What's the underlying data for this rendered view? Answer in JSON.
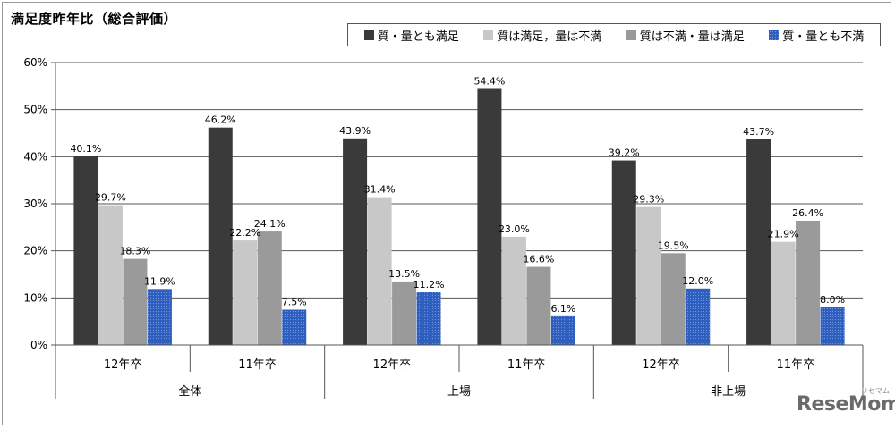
{
  "chart_data": {
    "type": "bar",
    "title": "満足度昨年比（総合評価）",
    "groups": [
      {
        "name": "全体",
        "categories": [
          "12年卒",
          "11年卒"
        ]
      },
      {
        "name": "上場",
        "categories": [
          "12年卒",
          "11年卒"
        ]
      },
      {
        "name": "非上場",
        "categories": [
          "12年卒",
          "11年卒"
        ]
      }
    ],
    "categories": [
      "12年卒",
      "11年卒",
      "12年卒",
      "11年卒",
      "12年卒",
      "11年卒"
    ],
    "series": [
      {
        "name": "質・量とも満足",
        "color": "#3a3a3a",
        "values": [
          40.1,
          46.2,
          43.9,
          54.4,
          39.2,
          43.7
        ],
        "labels": [
          "40.1%",
          "46.2%",
          "43.9%",
          "54.4%",
          "39.2%",
          "43.7%"
        ]
      },
      {
        "name": "質は満足，量は不満",
        "color": "#c8c8c8",
        "values": [
          29.7,
          22.2,
          31.4,
          23.0,
          29.3,
          21.9
        ],
        "labels": [
          "29.7%",
          "22.2%",
          "31.4%",
          "23.0%",
          "29.3%",
          "21.9%"
        ]
      },
      {
        "name": "質は不満・量は満足",
        "color": "#9a9a9a",
        "values": [
          18.3,
          24.1,
          13.5,
          16.6,
          19.5,
          26.4
        ],
        "labels": [
          "18.3%",
          "24.1%",
          "13.5%",
          "16.6%",
          "19.5%",
          "26.4%"
        ]
      },
      {
        "name": "質・量とも不満",
        "color": "#2f5fbf",
        "values": [
          11.9,
          7.5,
          11.2,
          6.1,
          12.0,
          8.0
        ],
        "labels": [
          "11.9%",
          "7.5%",
          "11.2%",
          "6.1%",
          "12.0%",
          "8.0%"
        ]
      }
    ],
    "y_ticks": [
      "0%",
      "10%",
      "20%",
      "30%",
      "40%",
      "50%",
      "60%"
    ],
    "ylim": [
      0,
      60
    ],
    "grid": true,
    "legend_position": "top-right"
  },
  "watermark": {
    "text": "ReseMom",
    "sub": "リセマム"
  }
}
